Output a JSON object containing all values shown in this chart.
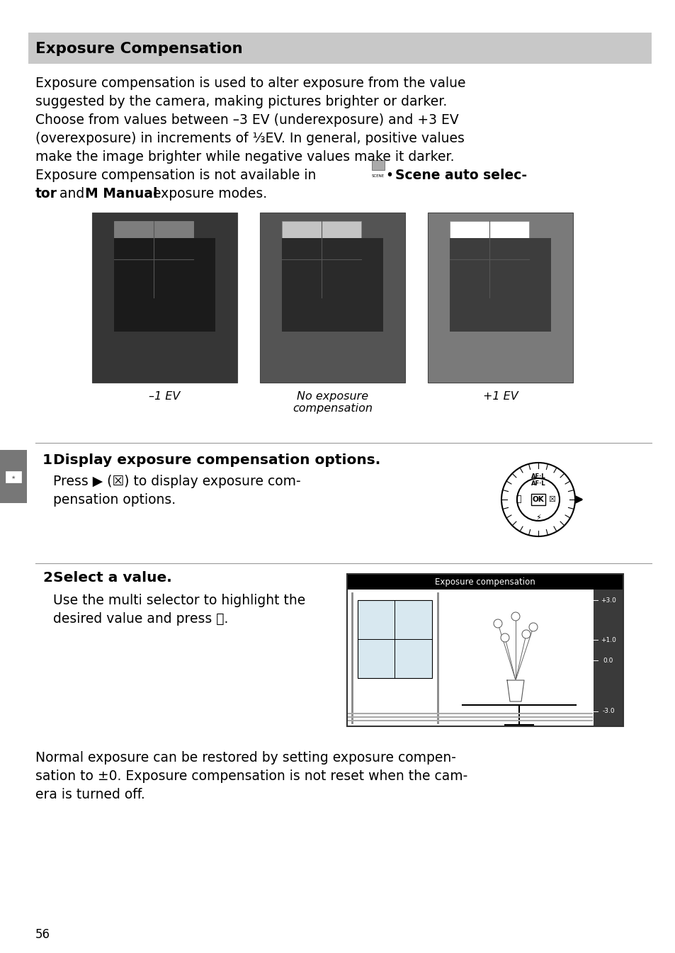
{
  "bg_color": "#ffffff",
  "title": "Exposure Compensation",
  "title_bg": "#c8c8c8",
  "title_fontsize": 15.5,
  "img_labels": [
    "–1 EV",
    "No exposure\ncompensation",
    "+1 EV"
  ],
  "step1_bold": "Display exposure compensation options.",
  "step1_body_line1": "Press ▶ (☒) to display exposure com-",
  "step1_body_line2": "pensation options.",
  "step2_bold": "Select a value.",
  "step2_body_line1": "Use the multi selector to highlight the",
  "step2_body_line2": "desired value and press ⒪.",
  "footer_line1": "Normal exposure can be restored by setting exposure compen-",
  "footer_line2": "sation to ±0. Exposure compensation is not reset when the cam-",
  "footer_line3": "era is turned off.",
  "page_num": "56",
  "body_fontsize": 13.5,
  "step_fontsize": 14.5,
  "lh": 26
}
